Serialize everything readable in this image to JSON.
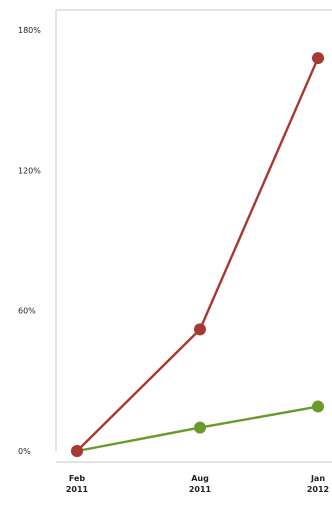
{
  "chart_data": {
    "type": "line",
    "title": "",
    "xlabel": "",
    "ylabel": "",
    "categories": [
      "Feb 2011",
      "Aug 2011",
      "Jan 2012"
    ],
    "category_labels": [
      [
        "Feb",
        "2011"
      ],
      [
        "Aug",
        "2011"
      ],
      [
        "Jan",
        "2012"
      ]
    ],
    "yticks": [
      "0%",
      "60%",
      "120%",
      "180%"
    ],
    "ytick_values": [
      0,
      60,
      120,
      180
    ],
    "ylim": [
      0,
      180
    ],
    "grid": false,
    "series": [
      {
        "values": [
          0,
          52,
          168
        ],
        "color": "#a63a32"
      },
      {
        "values": [
          0,
          10,
          19
        ],
        "color": "#6a9a2c"
      }
    ]
  }
}
